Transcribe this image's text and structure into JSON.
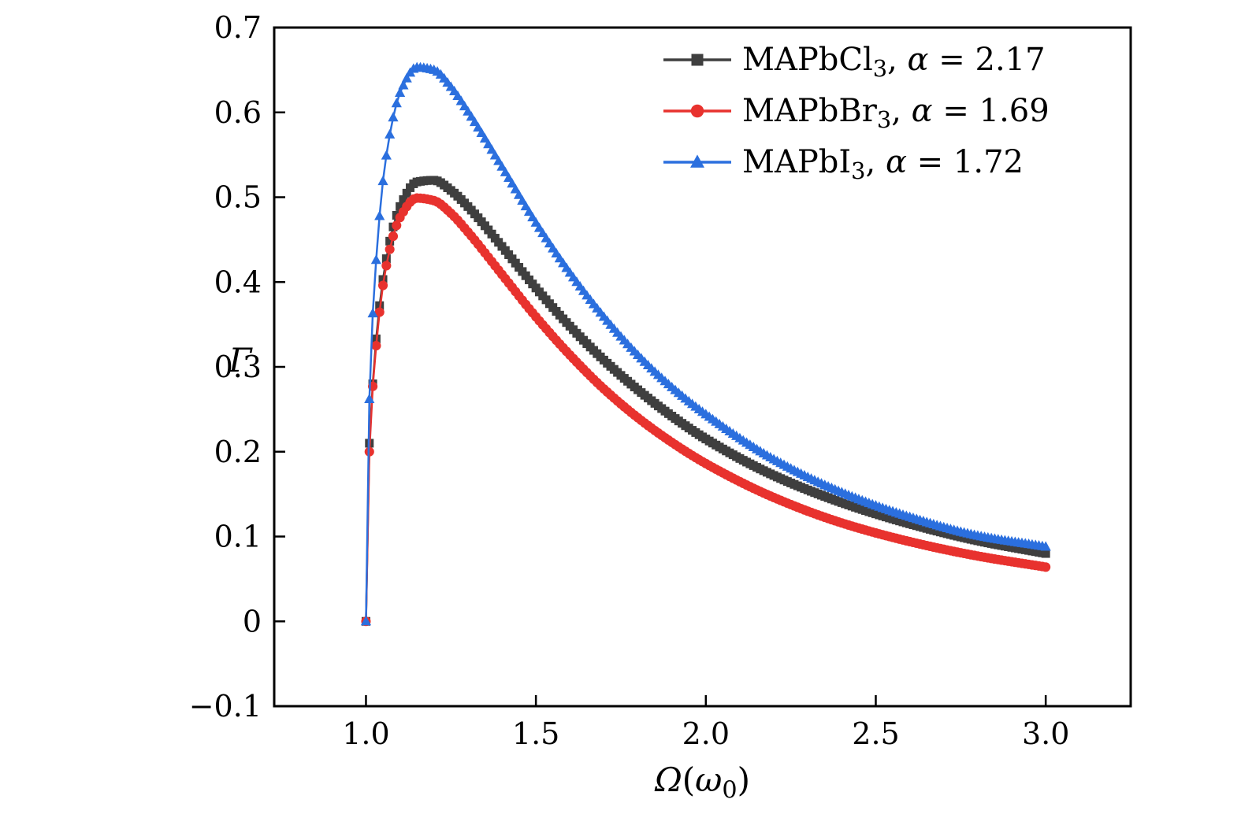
{
  "figure": {
    "background": "#ffffff",
    "axis_color": "#000000"
  },
  "chart_data": {
    "type": "line",
    "title": "",
    "xlabel_text": "Ω(ω0)",
    "xlabel_parts": [
      {
        "t": "Ω",
        "style": "italic"
      },
      {
        "t": "(",
        "style": "normal"
      },
      {
        "t": "ω",
        "style": "italic"
      },
      {
        "t": "0",
        "style": "sub"
      },
      {
        "t": ")",
        "style": "normal"
      }
    ],
    "ylabel_text": "Γ",
    "ylabel_parts": [
      {
        "t": "Γ",
        "style": "italic"
      }
    ],
    "xlim": [
      0.73,
      3.25
    ],
    "ylim": [
      -0.1,
      0.7
    ],
    "grid": false,
    "legend_position": "top-right",
    "x_ticks": {
      "values": [
        1.0,
        1.5,
        2.0,
        2.5,
        3.0
      ],
      "labels": [
        "1.0",
        "1.5",
        "2.0",
        "2.5",
        "3.0"
      ]
    },
    "y_ticks": {
      "values": [
        -0.1,
        0.0,
        0.1,
        0.2,
        0.3,
        0.4,
        0.5,
        0.6,
        0.7
      ],
      "labels": [
        "−0.1",
        "0",
        "0.1",
        "0.2",
        "0.3",
        "0.4",
        "0.5",
        "0.6",
        "0.7"
      ]
    },
    "series": [
      {
        "id": "MAPbCl3",
        "label_text": "MAPbCl3, α = 2.17",
        "label_parts": [
          {
            "t": "MAPbCl",
            "style": "normal"
          },
          {
            "t": "3",
            "style": "sub"
          },
          {
            "t": ", ",
            "style": "normal"
          },
          {
            "t": "α",
            "style": "italic"
          },
          {
            "t": " = 2.17",
            "style": "normal"
          }
        ],
        "color": "#3f3f3f",
        "marker": "square",
        "x": [
          1.0,
          1.01,
          1.02,
          1.03,
          1.05,
          1.08,
          1.1,
          1.15,
          1.2,
          1.25,
          1.3,
          1.4,
          1.5,
          1.6,
          1.7,
          1.8,
          1.9,
          2.0,
          2.2,
          2.4,
          2.6,
          2.8,
          3.0
        ],
        "y": [
          0.0,
          0.21,
          0.28,
          0.333,
          0.403,
          0.465,
          0.489,
          0.518,
          0.52,
          0.508,
          0.489,
          0.442,
          0.393,
          0.348,
          0.308,
          0.273,
          0.242,
          0.215,
          0.172,
          0.14,
          0.115,
          0.095,
          0.08
        ]
      },
      {
        "id": "MAPbBr3",
        "label_text": "MAPbBr3, α = 1.69",
        "label_parts": [
          {
            "t": "MAPbBr",
            "style": "normal"
          },
          {
            "t": "3",
            "style": "sub"
          },
          {
            "t": ", ",
            "style": "normal"
          },
          {
            "t": "α",
            "style": "italic"
          },
          {
            "t": " = 1.69",
            "style": "normal"
          }
        ],
        "color": "#e8322e",
        "marker": "circle",
        "x": [
          1.0,
          1.01,
          1.02,
          1.03,
          1.05,
          1.08,
          1.1,
          1.15,
          1.2,
          1.25,
          1.3,
          1.4,
          1.5,
          1.6,
          1.7,
          1.8,
          1.9,
          2.0,
          2.2,
          2.4,
          2.6,
          2.8,
          3.0
        ],
        "y": [
          0.0,
          0.2,
          0.277,
          0.325,
          0.396,
          0.454,
          0.476,
          0.499,
          0.496,
          0.481,
          0.459,
          0.409,
          0.359,
          0.314,
          0.274,
          0.24,
          0.211,
          0.186,
          0.146,
          0.116,
          0.094,
          0.077,
          0.064
        ]
      },
      {
        "id": "MAPbI3",
        "label_text": "MAPbI3, α = 1.72",
        "label_parts": [
          {
            "t": "MAPbI",
            "style": "normal"
          },
          {
            "t": "3",
            "style": "sub"
          },
          {
            "t": ", ",
            "style": "normal"
          },
          {
            "t": "α",
            "style": "italic"
          },
          {
            "t": " = 1.72",
            "style": "normal"
          }
        ],
        "color": "#2b6fde",
        "marker": "triangle",
        "x": [
          1.0,
          1.01,
          1.02,
          1.03,
          1.05,
          1.08,
          1.1,
          1.15,
          1.2,
          1.25,
          1.3,
          1.4,
          1.5,
          1.6,
          1.7,
          1.8,
          1.9,
          2.0,
          2.2,
          2.4,
          2.6,
          2.8,
          3.0
        ],
        "y": [
          0.0,
          0.262,
          0.363,
          0.426,
          0.519,
          0.594,
          0.623,
          0.653,
          0.65,
          0.63,
          0.601,
          0.536,
          0.47,
          0.411,
          0.359,
          0.314,
          0.276,
          0.244,
          0.191,
          0.152,
          0.123,
          0.101,
          0.088
        ]
      }
    ]
  }
}
